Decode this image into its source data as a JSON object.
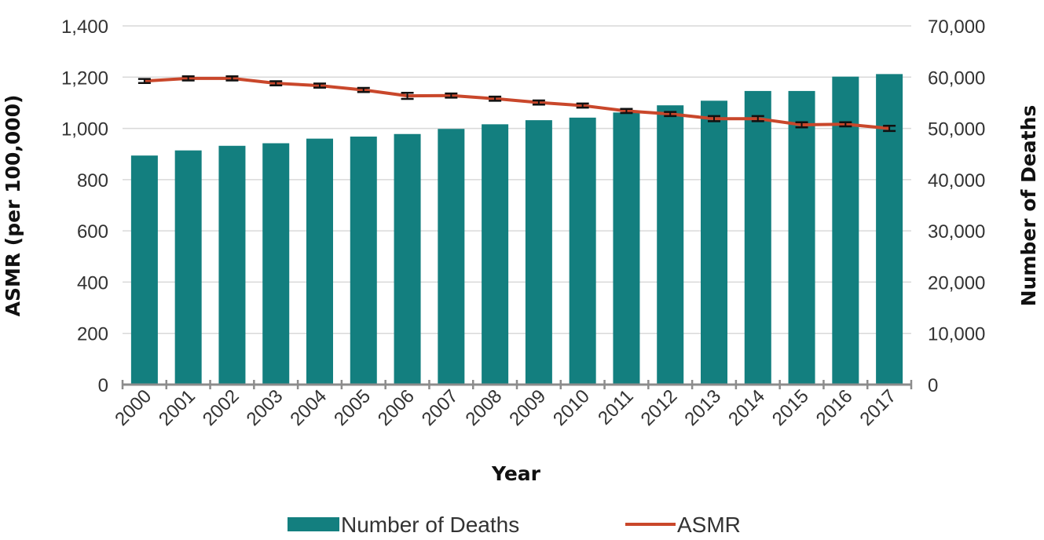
{
  "chart_data": {
    "type": "bar",
    "categories": [
      "2000",
      "2001",
      "2002",
      "2003",
      "2004",
      "2005",
      "2006",
      "2007",
      "2008",
      "2009",
      "2010",
      "2011",
      "2012",
      "2013",
      "2014",
      "2015",
      "2016",
      "2017"
    ],
    "series": [
      {
        "name": "Number of Deaths",
        "type": "bar",
        "axis": "right",
        "color": "#137f7f",
        "values": [
          44700,
          45700,
          46600,
          47100,
          48000,
          48400,
          48900,
          49900,
          50800,
          51600,
          52100,
          53100,
          54500,
          55400,
          57300,
          57300,
          60100,
          60600
        ]
      },
      {
        "name": "ASMR",
        "type": "line",
        "axis": "left",
        "color": "#c9472b",
        "values": [
          1185,
          1195,
          1195,
          1176,
          1167,
          1150,
          1127,
          1128,
          1116,
          1101,
          1089,
          1068,
          1056,
          1038,
          1038,
          1014,
          1016,
          1000
        ],
        "error": [
          8,
          8,
          8,
          8,
          8,
          8,
          12,
          8,
          8,
          8,
          8,
          8,
          8,
          10,
          10,
          10,
          8,
          10
        ]
      }
    ],
    "xlabel": "Year",
    "ylabel_left": "ASMR (per 100,000)",
    "ylabel_right": "Number of Deaths",
    "ylim_left": [
      0,
      1400
    ],
    "ylim_right": [
      0,
      70000
    ],
    "yticks_left": [
      "0",
      "200",
      "400",
      "600",
      "800",
      "1,000",
      "1,200",
      "1,400"
    ],
    "yticks_right": [
      "0",
      "10,000",
      "20,000",
      "30,000",
      "40,000",
      "50,000",
      "60,000",
      "70,000"
    ],
    "grid": true,
    "legend_position": "bottom"
  }
}
